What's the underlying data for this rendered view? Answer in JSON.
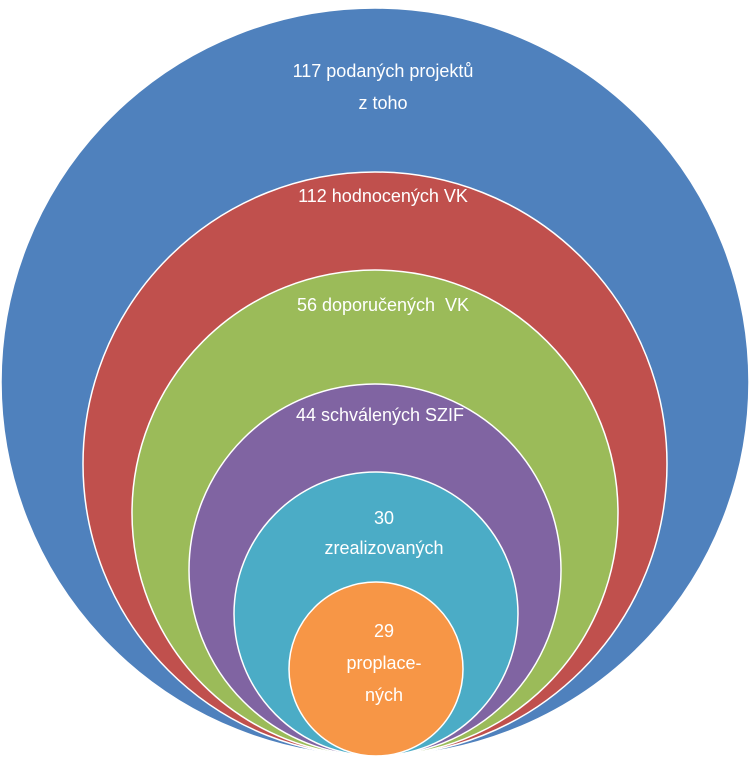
{
  "nodes": [
    {
      "lines": [
        "117 podaných projektů",
        "z toho"
      ]
    },
    {
      "lines": [
        "112 hodnocených VK"
      ]
    },
    {
      "lines": [
        "56 doporučených  VK"
      ]
    },
    {
      "lines": [
        "44 schválených SZIF"
      ]
    },
    {
      "lines": [
        "30",
        "zrealizovaných"
      ]
    },
    {
      "lines": [
        "29",
        "proplace-",
        "ných"
      ]
    }
  ]
}
